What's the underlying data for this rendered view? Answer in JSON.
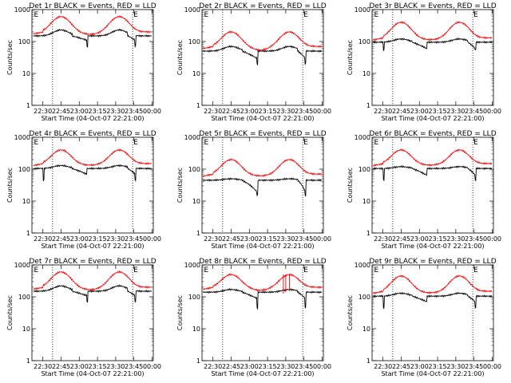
{
  "chart_data": {
    "type": "line",
    "shared": {
      "xlabel": "Start Time (04-Oct-07 22:21:00)",
      "ylabel": "Counts/sec",
      "x_ticks": [
        "22:30",
        "22:45",
        "23:00",
        "23:15",
        "23:30",
        "23:45",
        "00:00"
      ],
      "x_tick_minutes": [
        30,
        45,
        60,
        75,
        90,
        105,
        120
      ],
      "xlim_minutes": [
        21,
        121
      ],
      "y_ticks": [
        "1",
        "10",
        "100",
        "1000"
      ],
      "y_tick_values": [
        1,
        10,
        100,
        1000
      ],
      "ylim": [
        1,
        1000
      ],
      "y_scale": "log",
      "grid": false,
      "dotted_lines_minutes": [
        38,
        104
      ],
      "e_marker": "E",
      "e_marker_minutes": [
        22,
        104
      ],
      "series_colors": {
        "events": "#000000",
        "lld": "#ff0000"
      }
    },
    "panels": [
      {
        "title": "Det 1r BLACK = Events, RED = LLD",
        "lld": {
          "base": 200,
          "peak": 600,
          "valley": 160
        },
        "events": {
          "base": 150,
          "peak": 230,
          "valley": 110,
          "step_minutes": [
            66,
            106
          ],
          "step_value": 70
        }
      },
      {
        "title": "Det 2r BLACK = Events, RED = LLD",
        "lld": {
          "base": 70,
          "peak": 200,
          "valley": 50
        },
        "events": {
          "base": 50,
          "peak": 70,
          "valley": 30,
          "step_minutes": [
            66,
            106
          ],
          "step_value": 20
        }
      },
      {
        "title": "Det 3r BLACK = Events, RED = LLD",
        "lld": {
          "base": 130,
          "peak": 400,
          "valley": 110
        },
        "events": {
          "base": 95,
          "peak": 120,
          "valley": 60,
          "step_minutes": [
            30,
            106
          ],
          "step_value": 55
        }
      },
      {
        "title": "Det 4r BLACK = Events, RED = LLD",
        "lld": {
          "base": 150,
          "peak": 400,
          "valley": 130
        },
        "events": {
          "base": 105,
          "peak": 130,
          "valley": 70,
          "step_minutes": [
            30,
            106
          ],
          "step_value": 45
        }
      },
      {
        "title": "Det 5r BLACK = Events, RED = LLD",
        "lld": {
          "base": 70,
          "peak": 200,
          "valley": 60
        },
        "events": {
          "base": 45,
          "peak": 50,
          "valley": 20,
          "step_minutes": [
            66,
            106
          ],
          "step_value": 15
        }
      },
      {
        "title": "Det 6r BLACK = Events, RED = LLD",
        "lld": {
          "base": 150,
          "peak": 400,
          "valley": 130
        },
        "events": {
          "base": 105,
          "peak": 120,
          "valley": 65,
          "step_minutes": [
            30,
            106
          ],
          "step_value": 45
        }
      },
      {
        "title": "Det 7r BLACK = Events, RED = LLD",
        "lld": {
          "base": 200,
          "peak": 600,
          "valley": 160
        },
        "events": {
          "base": 150,
          "peak": 220,
          "valley": 110,
          "step_minutes": [
            66,
            106
          ],
          "step_value": 70
        }
      },
      {
        "title": "Det 8r BLACK = Events, RED = LLD",
        "lld": {
          "base": 200,
          "peak": 500,
          "valley": 150,
          "spikes_minutes": [
            88,
            90,
            93
          ],
          "spike_value": 500
        },
        "events": {
          "base": 140,
          "peak": 170,
          "valley": 90,
          "step_minutes": [
            66,
            106
          ],
          "step_value": 45
        }
      },
      {
        "title": "Det 9r BLACK = Events, RED = LLD",
        "lld": {
          "base": 150,
          "peak": 450,
          "valley": 130
        },
        "events": {
          "base": 105,
          "peak": 130,
          "valley": 70,
          "step_minutes": [
            30,
            106
          ],
          "step_value": 45
        }
      }
    ]
  }
}
